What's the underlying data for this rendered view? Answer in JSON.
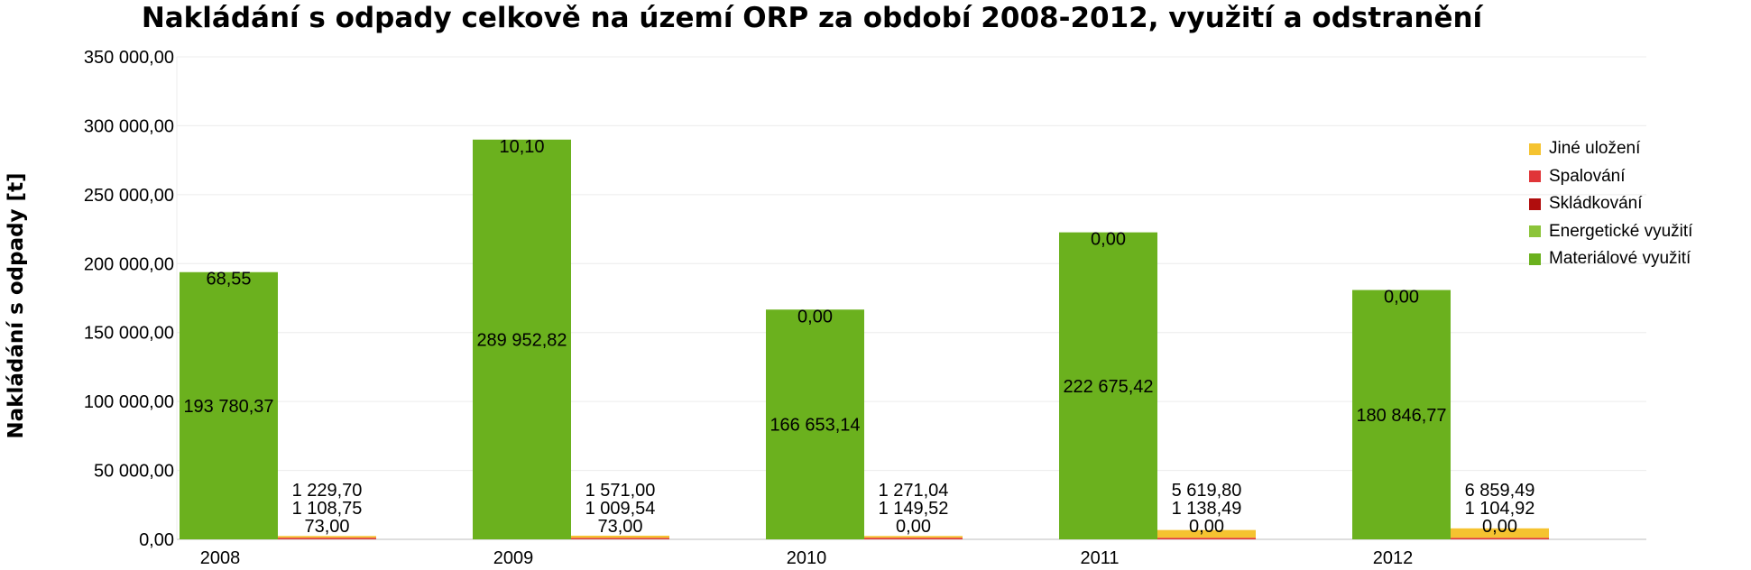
{
  "chart_data": {
    "type": "bar",
    "title": "Nakládání s odpady celkově na území ORP za období 2008-2012, využití a odstranění",
    "xlabel": "",
    "ylabel": "Nakládání s odpady [t]",
    "ylim": [
      0,
      350000
    ],
    "yticks": [
      0,
      50000,
      100000,
      150000,
      200000,
      250000,
      300000,
      350000
    ],
    "ytick_labels": [
      "0,00",
      "50 000,00",
      "100 000,00",
      "150 000,00",
      "200 000,00",
      "250 000,00",
      "300 000,00",
      "350 000,00"
    ],
    "categories": [
      "2008",
      "2009",
      "2010",
      "2011",
      "2012"
    ],
    "stacks": [
      {
        "name": "využití",
        "series": [
          "Materiálové využití",
          "Energetické využití"
        ]
      },
      {
        "name": "odstranění",
        "series": [
          "Skládkování",
          "Spalování",
          "Jiné uložení"
        ]
      }
    ],
    "series": [
      {
        "name": "Materiálové využití",
        "stack": "využití",
        "color": "#6bb11e",
        "values": [
          193780.37,
          289952.82,
          166653.14,
          222675.42,
          180846.77
        ],
        "labels": [
          "193 780,37",
          "289 952,82",
          "166 653,14",
          "222 675,42",
          "180 846,77"
        ]
      },
      {
        "name": "Energetické využití",
        "stack": "využití",
        "color": "#8cc43a",
        "values": [
          68.55,
          10.1,
          0.0,
          0.0,
          0.0
        ],
        "labels": [
          "68,55",
          "10,10",
          "0,00",
          "0,00",
          "0,00"
        ]
      },
      {
        "name": "Skládkování",
        "stack": "odstranění",
        "color": "#b00d0d",
        "values": [
          73.0,
          73.0,
          0.0,
          0.0,
          0.0
        ],
        "labels": [
          "73,00",
          "73,00",
          "0,00",
          "0,00",
          "0,00"
        ]
      },
      {
        "name": "Spalování",
        "stack": "odstranění",
        "color": "#e03538",
        "values": [
          1108.75,
          1009.54,
          1149.52,
          1138.49,
          1104.92
        ],
        "labels": [
          "1 108,75",
          "1 009,54",
          "1 149,52",
          "1 138,49",
          "1 104,92"
        ]
      },
      {
        "name": "Jiné uložení",
        "stack": "odstranění",
        "color": "#f5c330",
        "values": [
          1229.7,
          1571.0,
          1271.04,
          5619.8,
          6859.49
        ],
        "labels": [
          "1 229,70",
          "1 571,00",
          "1 271,04",
          "5 619,80",
          "6 859,49"
        ]
      }
    ],
    "legend": {
      "position": "right",
      "items": [
        {
          "label": "Jiné uložení",
          "color": "#f5c330"
        },
        {
          "label": "Spalování",
          "color": "#e03538"
        },
        {
          "label": "Skládkování",
          "color": "#b00d0d"
        },
        {
          "label": "Energetické využití",
          "color": "#8cc43a"
        },
        {
          "label": "Materiálové využití",
          "color": "#6bb11e"
        }
      ]
    },
    "grid": true
  }
}
